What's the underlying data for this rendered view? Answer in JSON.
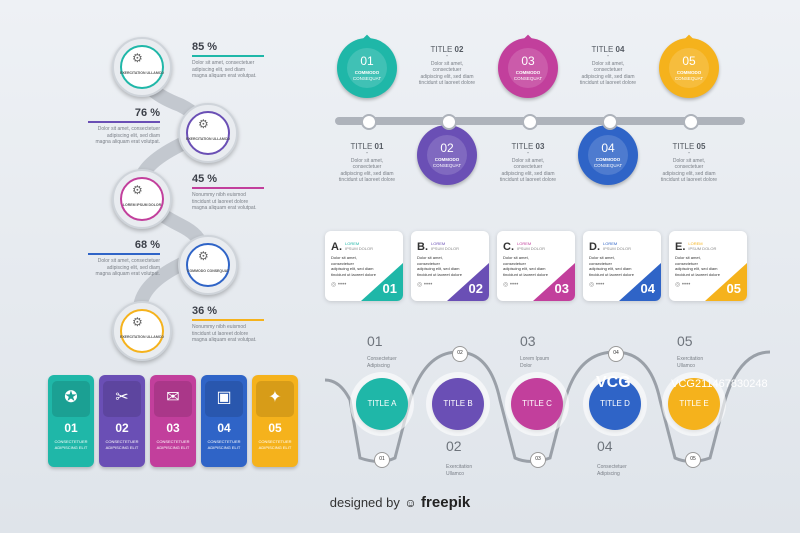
{
  "colors": {
    "teal": "#1fb7a8",
    "purple": "#6a4fb5",
    "magenta": "#c23f9c",
    "blue": "#2f64c7",
    "yellow": "#f5b21c",
    "gray": "#b9bec6"
  },
  "lorem": {
    "l1": "Dolor sit amet, consectetuer",
    "l2": "adipiscing elit, sed diam",
    "l3": "magna aliquam erat volutpat.",
    "n1": "Nonummy nibh euismod",
    "n2": "tincidunt ut laoreet dolore",
    "n3": "magna aliquam erat volutpat.",
    "t1": "Dolor sit amet, consectetuer",
    "t2": "adipiscing elit, sed diam",
    "t3": "tincidunt ut laoreet dolore"
  },
  "chain": {
    "items": [
      {
        "pct": "85 %",
        "label": "EXERCITATION ULLAMCO"
      },
      {
        "pct": "76 %",
        "label": "EXERCITATION ULLAMCO"
      },
      {
        "pct": "45 %",
        "label": "LOREM IPSUM DOLOR"
      },
      {
        "pct": "68 %",
        "label": "COMMODO CONSEQUAT"
      },
      {
        "pct": "36 %",
        "label": "EXERCITATION ULLAMCO"
      }
    ]
  },
  "timeline": {
    "pins": [
      {
        "num": "01",
        "label1": "COMMODO",
        "label2": "CONSEQUAT"
      },
      {
        "num": "02",
        "label1": "COMMODO",
        "label2": "CONSEQUAT"
      },
      {
        "num": "03",
        "label1": "COMMODO",
        "label2": "CONSEQUAT"
      },
      {
        "num": "04",
        "label1": "COMMODO",
        "label2": "CONSEQUAT"
      },
      {
        "num": "05",
        "label1": "COMMODO",
        "label2": "CONSEQUAT"
      }
    ],
    "titles": [
      {
        "word": "TITLE",
        "num": "01"
      },
      {
        "word": "TITLE",
        "num": "02"
      },
      {
        "word": "TITLE",
        "num": "03"
      },
      {
        "word": "TITLE",
        "num": "04"
      },
      {
        "word": "TITLE",
        "num": "05"
      }
    ],
    "dash": "-"
  },
  "cards": [
    {
      "letter": "A.",
      "h1": "LOREM",
      "h2": "IPSUM DOLOR",
      "num": "01"
    },
    {
      "letter": "B.",
      "h1": "LOREM",
      "h2": "IPSUM DOLOR",
      "num": "02"
    },
    {
      "letter": "C.",
      "h1": "LOREM",
      "h2": "IPSUM DOLOR",
      "num": "03"
    },
    {
      "letter": "D.",
      "h1": "LOREM",
      "h2": "IPSUM DOLOR",
      "num": "04"
    },
    {
      "letter": "E.",
      "h1": "LOREM",
      "h2": "IPSUM DOLOR",
      "num": "05"
    }
  ],
  "tabs": [
    {
      "num": "01",
      "l1": "CONSECTETUER",
      "l2": "ADIPISCING ELIT"
    },
    {
      "num": "02",
      "l1": "CONSECTETUER",
      "l2": "ADIPISCING ELIT"
    },
    {
      "num": "03",
      "l1": "CONSECTETUER",
      "l2": "ADIPISCING ELIT"
    },
    {
      "num": "04",
      "l1": "CONSECTETUER",
      "l2": "ADIPISCING ELIT"
    },
    {
      "num": "05",
      "l1": "CONSECTETUER",
      "l2": "ADIPISCING ELIT"
    }
  ],
  "snake": {
    "circles": [
      "TITLE A",
      "TITLE B",
      "TITLE C",
      "TITLE D",
      "TITLE E"
    ],
    "nodes": [
      "01",
      "02",
      "03",
      "04",
      "05"
    ],
    "topnums": [
      "01",
      "03",
      "05"
    ],
    "bottomnums": [
      "02",
      "04"
    ],
    "captions": [
      {
        "a": "Consectetuer",
        "b": "Adipiscing"
      },
      {
        "a": "Exercitation",
        "b": "Ullamco"
      },
      {
        "a": "Lorem Ipsum",
        "b": "Dolor"
      },
      {
        "a": "Consectetuer",
        "b": "Adipiscing"
      },
      {
        "a": "Exercitation",
        "b": "Ullamco"
      }
    ]
  },
  "footer": {
    "designed": "designed by",
    "brand": "freepik"
  },
  "watermark": {
    "logo": "VCG",
    "id": "VCG211467830248"
  }
}
